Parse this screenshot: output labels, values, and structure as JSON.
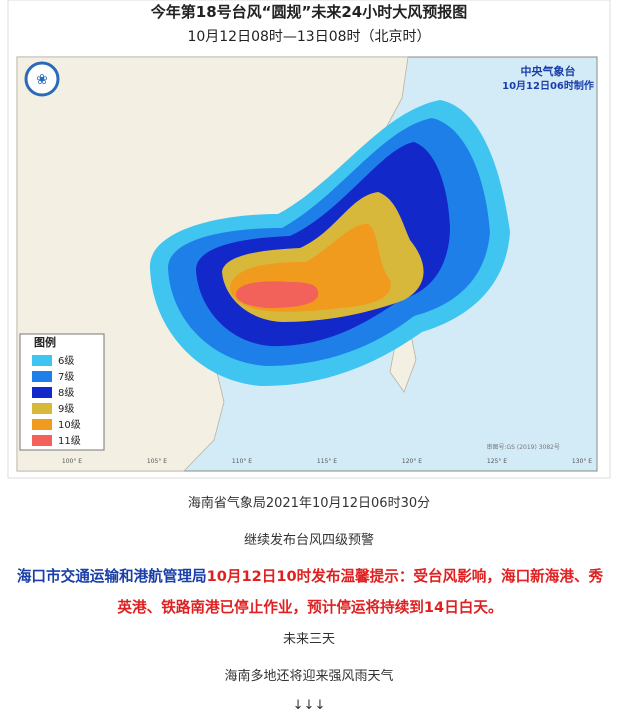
{
  "map": {
    "title": "今年第18号台风“圆规”未来24小时大风预报图",
    "subtitle": "10月12日08时—13日08时（北京时）",
    "agency": "中央气象台",
    "made": "10月12日06时制作",
    "legend": {
      "title": "图例",
      "items": [
        {
          "label": "6级",
          "color": "#3fc5f0"
        },
        {
          "label": "7级",
          "color": "#1e7fe8"
        },
        {
          "label": "8级",
          "color": "#1228c8"
        },
        {
          "label": "9级",
          "color": "#d8b83a"
        },
        {
          "label": "10级",
          "color": "#f09a1e"
        },
        {
          "label": "11级",
          "color": "#f2625a"
        }
      ]
    },
    "lon_labels": [
      "100° E",
      "105° E",
      "110° E",
      "115° E",
      "120° E",
      "125° E",
      "130° E"
    ],
    "credit": "审图号:GS (2019) 3082号"
  },
  "article": {
    "line1": "海南省气象局2021年10月12日06时30分",
    "line2": "继续发布台风四级预警",
    "notice_source": "海口市交通运输和港航管理局",
    "notice_text": "10月12日10时发布温馨提示：受台风影响，海口新海港、秀英港、铁路南港已停止作业，预计停运将持续到14日白天。",
    "line3": "未来三天",
    "line4": "海南多地还将迎来强风雨天气",
    "arrows": "↓↓↓"
  }
}
